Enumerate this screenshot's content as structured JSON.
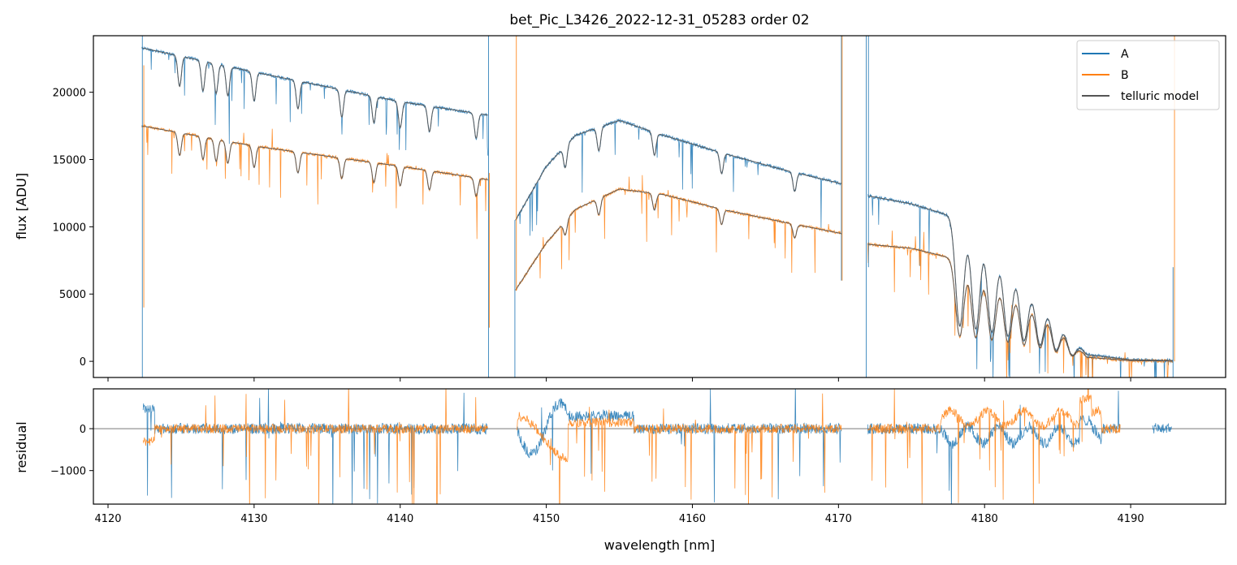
{
  "chart_data": {
    "type": "line",
    "title": "bet_Pic_L3426_2022-12-31_05283  order 02",
    "xlabel": "wavelength [nm]",
    "xlim": [
      4119,
      4196.5
    ],
    "xticks": [
      4120,
      4130,
      4140,
      4150,
      4160,
      4170,
      4180,
      4190
    ],
    "panels": {
      "flux": {
        "ylabel": "flux [ADU]",
        "ylim": [
          -1200,
          24200
        ],
        "yticks": [
          0,
          5000,
          10000,
          15000,
          20000
        ],
        "segments": [
          [
            4122.3,
            4146.0
          ],
          [
            4147.9,
            4170.2
          ],
          [
            4172.0,
            4192.9
          ]
        ],
        "series": [
          {
            "name": "A",
            "color": "#1f77b4",
            "knots": [
              [
                [
                  4122.3,
                  23300
                ],
                [
                  4130,
                  21500
                ],
                [
                  4140,
                  19300
                ],
                [
                  4146.0,
                  18300
                ]
              ],
              [
                [
                  4147.9,
                  10500
                ],
                [
                  4150,
                  14500
                ],
                [
                  4152,
                  16800
                ],
                [
                  4155,
                  17900
                ],
                [
                  4158,
                  16800
                ],
                [
                  4162,
                  15500
                ],
                [
                  4166,
                  14300
                ],
                [
                  4170.2,
                  13200
                ]
              ],
              [
                [
                  4172.0,
                  12300
                ],
                [
                  4175,
                  11700
                ],
                [
                  4178,
                  10700
                ],
                [
                  4180,
                  9200
                ],
                [
                  4182,
                  7000
                ],
                [
                  4184,
                  4500
                ],
                [
                  4185.8,
                  2000
                ],
                [
                  4187,
                  500
                ],
                [
                  4190,
                  120
                ],
                [
                  4192.9,
                  50
                ]
              ]
            ]
          },
          {
            "name": "B",
            "color": "#ff7f0e",
            "knots": [
              [
                [
                  4122.3,
                  17500
                ],
                [
                  4130,
                  16000
                ],
                [
                  4140,
                  14500
                ],
                [
                  4146.0,
                  13500
                ]
              ],
              [
                [
                  4147.9,
                  5300
                ],
                [
                  4150,
                  8800
                ],
                [
                  4152,
                  11300
                ],
                [
                  4155,
                  12800
                ],
                [
                  4158,
                  12400
                ],
                [
                  4162,
                  11300
                ],
                [
                  4166,
                  10400
                ],
                [
                  4170.2,
                  9500
                ]
              ],
              [
                [
                  4172.0,
                  8700
                ],
                [
                  4175,
                  8400
                ],
                [
                  4178,
                  7600
                ],
                [
                  4180,
                  6700
                ],
                [
                  4182,
                  5400
                ],
                [
                  4184,
                  3800
                ],
                [
                  4185.8,
                  1800
                ],
                [
                  4187,
                  300
                ],
                [
                  4190,
                  50
                ],
                [
                  4192.9,
                  30
                ]
              ]
            ]
          },
          {
            "name": "telluric model",
            "color": "#555555"
          }
        ],
        "absorption_lines": [
          4124.9,
          4126.5,
          4127.4,
          4128.2,
          4130.0,
          4133.0,
          4136.0,
          4138.2,
          4140.0,
          4142.0,
          4145.2,
          4151.3,
          4153.6,
          4157.4,
          4162.0,
          4167.0,
          4178.3,
          4179.4,
          4180.5,
          4181.6,
          4182.7,
          4183.8,
          4184.9,
          4186.0
        ]
      },
      "residual": {
        "ylabel": "residual",
        "ylim": [
          -1800,
          950
        ],
        "yticks": [
          -1000,
          0
        ],
        "series": [
          {
            "name": "A",
            "color": "#1f77b4"
          },
          {
            "name": "B",
            "color": "#ff7f0e"
          }
        ]
      }
    },
    "legend": {
      "location": "upper right",
      "entries": [
        "A",
        "B",
        "telluric model"
      ]
    }
  }
}
